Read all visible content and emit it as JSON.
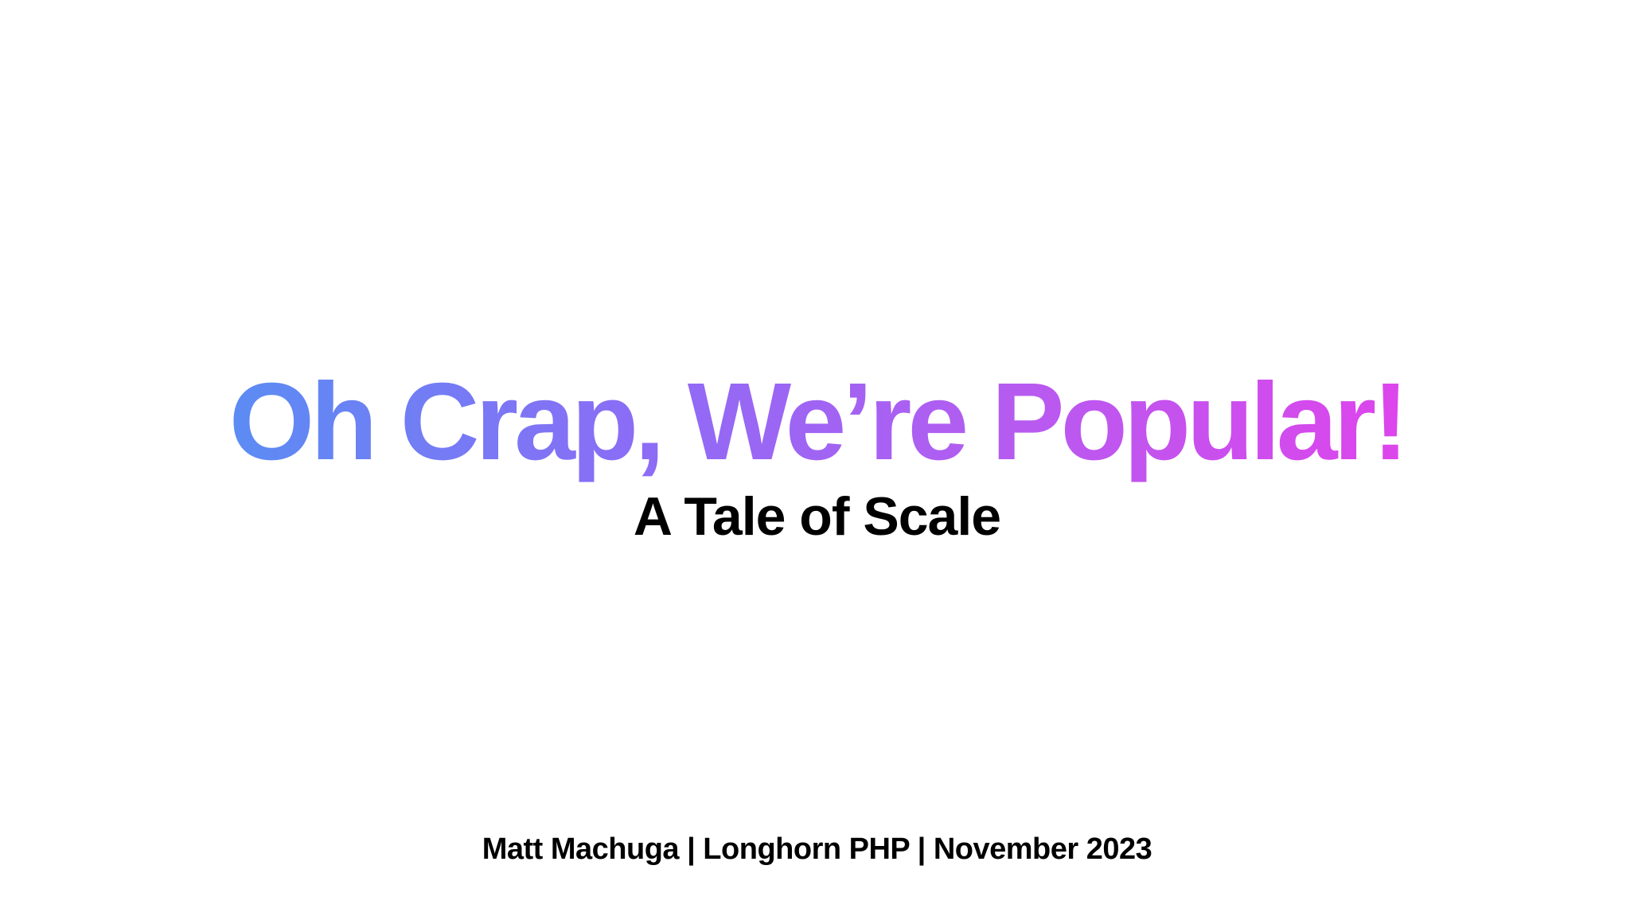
{
  "slide": {
    "title": "Oh Crap, We’re Popular!",
    "subtitle": "A Tale of Scale",
    "byline": "Matt Machuga | Longhorn PHP | November 2023"
  },
  "colors": {
    "background": "#ffffff",
    "title_gradient_start": "#5b8cf3",
    "title_gradient_end": "#dd45ec",
    "text": "#000000"
  }
}
